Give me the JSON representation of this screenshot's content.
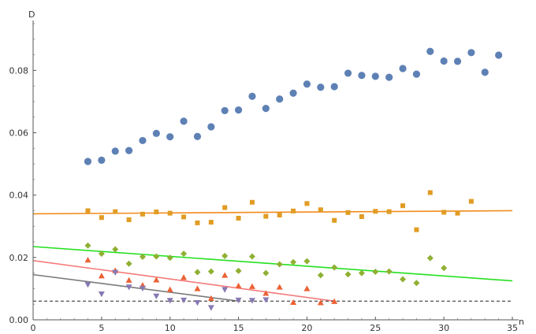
{
  "chart_data": {
    "type": "scatter",
    "title": "",
    "xlabel": "n",
    "ylabel": "D",
    "xlim": [
      0,
      35
    ],
    "ylim": [
      0,
      0.095
    ],
    "x_ticks": [
      0,
      5,
      10,
      15,
      20,
      25,
      30,
      35
    ],
    "y_ticks": [
      0.0,
      0.02,
      0.04,
      0.06,
      0.08
    ],
    "x_tick_labels": [
      "0",
      "5",
      "10",
      "15",
      "20",
      "25",
      "30",
      "35"
    ],
    "y_tick_labels": [
      "0.00",
      "0.02",
      "0.04",
      "0.06",
      "0.08"
    ],
    "grid": false,
    "series": [
      {
        "marker": "circle",
        "color": "#5e81b5",
        "points": [
          [
            4,
            0.0508
          ],
          [
            5,
            0.0512
          ],
          [
            6,
            0.0541
          ],
          [
            7,
            0.0543
          ],
          [
            8,
            0.0575
          ],
          [
            9,
            0.0598
          ],
          [
            10,
            0.0587
          ],
          [
            11,
            0.0637
          ],
          [
            12,
            0.0588
          ],
          [
            13,
            0.0619
          ],
          [
            14,
            0.0671
          ],
          [
            15,
            0.0673
          ],
          [
            16,
            0.0717
          ],
          [
            17,
            0.0678
          ],
          [
            18,
            0.0708
          ],
          [
            19,
            0.0727
          ],
          [
            20,
            0.0756
          ],
          [
            21,
            0.0746
          ],
          [
            22,
            0.0748
          ],
          [
            23,
            0.0791
          ],
          [
            24,
            0.0784
          ],
          [
            25,
            0.0781
          ],
          [
            26,
            0.0778
          ],
          [
            27,
            0.0806
          ],
          [
            28,
            0.0788
          ],
          [
            29,
            0.0861
          ],
          [
            30,
            0.083
          ],
          [
            31,
            0.0829
          ],
          [
            32,
            0.0857
          ],
          [
            33,
            0.0794
          ],
          [
            34,
            0.0849
          ]
        ]
      },
      {
        "marker": "square",
        "color": "#e19c24",
        "points": [
          [
            4,
            0.035
          ],
          [
            5,
            0.0328
          ],
          [
            6,
            0.0347
          ],
          [
            7,
            0.0321
          ],
          [
            8,
            0.0339
          ],
          [
            9,
            0.0346
          ],
          [
            10,
            0.0342
          ],
          [
            11,
            0.033
          ],
          [
            12,
            0.0311
          ],
          [
            13,
            0.0313
          ],
          [
            14,
            0.036
          ],
          [
            15,
            0.0326
          ],
          [
            16,
            0.0377
          ],
          [
            17,
            0.0332
          ],
          [
            18,
            0.0336
          ],
          [
            19,
            0.0349
          ],
          [
            20,
            0.0373
          ],
          [
            21,
            0.0353
          ],
          [
            22,
            0.0319
          ],
          [
            23,
            0.0344
          ],
          [
            24,
            0.0331
          ],
          [
            25,
            0.0348
          ],
          [
            26,
            0.0347
          ],
          [
            27,
            0.0366
          ],
          [
            28,
            0.0289
          ],
          [
            29,
            0.0408
          ],
          [
            30,
            0.0345
          ],
          [
            31,
            0.0342
          ],
          [
            32,
            0.038
          ]
        ]
      },
      {
        "marker": "diamond",
        "color": "#8fb032",
        "points": [
          [
            4,
            0.0238
          ],
          [
            5,
            0.0212
          ],
          [
            6,
            0.0226
          ],
          [
            7,
            0.018
          ],
          [
            8,
            0.0202
          ],
          [
            9,
            0.0203
          ],
          [
            10,
            0.0199
          ],
          [
            11,
            0.0212
          ],
          [
            12,
            0.0153
          ],
          [
            13,
            0.0155
          ],
          [
            14,
            0.0205
          ],
          [
            15,
            0.0157
          ],
          [
            16,
            0.0203
          ],
          [
            17,
            0.015
          ],
          [
            18,
            0.0178
          ],
          [
            19,
            0.0185
          ],
          [
            20,
            0.0188
          ],
          [
            21,
            0.0143
          ],
          [
            22,
            0.0168
          ],
          [
            23,
            0.0146
          ],
          [
            24,
            0.015
          ],
          [
            25,
            0.0154
          ],
          [
            26,
            0.0155
          ],
          [
            27,
            0.013
          ],
          [
            28,
            0.0118
          ],
          [
            29,
            0.0198
          ],
          [
            30,
            0.0166
          ]
        ]
      },
      {
        "marker": "triangle-up",
        "color": "#eb6235",
        "points": [
          [
            4,
            0.0192
          ],
          [
            5,
            0.0141
          ],
          [
            6,
            0.0158
          ],
          [
            7,
            0.0127
          ],
          [
            8,
            0.0111
          ],
          [
            9,
            0.0128
          ],
          [
            10,
            0.0097
          ],
          [
            11,
            0.0136
          ],
          [
            12,
            0.01
          ],
          [
            13,
            0.0069
          ],
          [
            14,
            0.0143
          ],
          [
            15,
            0.0109
          ],
          [
            16,
            0.0107
          ],
          [
            17,
            0.0085
          ],
          [
            18,
            0.0105
          ],
          [
            19,
            0.0056
          ],
          [
            20,
            0.01
          ],
          [
            21,
            0.0055
          ],
          [
            22,
            0.0059
          ]
        ]
      },
      {
        "marker": "triangle-down",
        "color": "#8778b3",
        "points": [
          [
            4,
            0.0113
          ],
          [
            5,
            0.0083
          ],
          [
            6,
            0.0152
          ],
          [
            7,
            0.0105
          ],
          [
            8,
            0.0101
          ],
          [
            9,
            0.0076
          ],
          [
            10,
            0.0062
          ],
          [
            11,
            0.0063
          ],
          [
            12,
            0.0055
          ],
          [
            13,
            0.0039
          ],
          [
            14,
            0.0097
          ],
          [
            15,
            0.0063
          ],
          [
            16,
            0.0062
          ],
          [
            17,
            0.0064
          ]
        ]
      }
    ],
    "lines": [
      {
        "style": "solid",
        "color": "#f28b1c",
        "x": [
          0,
          35
        ],
        "y": [
          0.034,
          0.035
        ]
      },
      {
        "style": "solid",
        "color": "#26e01f",
        "x": [
          0,
          35
        ],
        "y": [
          0.0235,
          0.0125
        ]
      },
      {
        "style": "solid",
        "color": "#f47a7a",
        "x": [
          0,
          22
        ],
        "y": [
          0.019,
          0.006
        ]
      },
      {
        "style": "solid",
        "color": "#7a7a7a",
        "x": [
          0,
          15
        ],
        "y": [
          0.0145,
          0.006
        ]
      },
      {
        "style": "dashed",
        "color": "#222222",
        "x": [
          0,
          35
        ],
        "y": [
          0.006,
          0.006
        ]
      }
    ]
  }
}
